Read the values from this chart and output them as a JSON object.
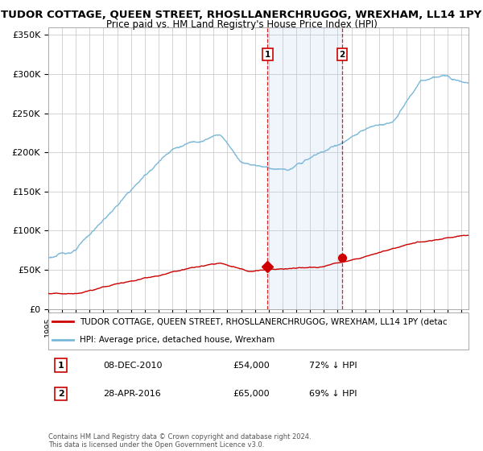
{
  "title": "TUDOR COTTAGE, QUEEN STREET, RHOSLLANERCHRUGOG, WREXHAM, LL14 1PY",
  "subtitle": "Price paid vs. HM Land Registry's House Price Index (HPI)",
  "ylabel_ticks": [
    "£0",
    "£50K",
    "£100K",
    "£150K",
    "£200K",
    "£250K",
    "£300K",
    "£350K"
  ],
  "ytick_values": [
    0,
    50000,
    100000,
    150000,
    200000,
    250000,
    300000,
    350000
  ],
  "ylim": [
    0,
    360000
  ],
  "xlim_start": 1995.0,
  "xlim_end": 2025.5,
  "marker1_x": 2010.92,
  "marker1_y": 54000,
  "marker2_x": 2016.33,
  "marker2_y": 65000,
  "marker1_label": "1",
  "marker2_label": "2",
  "marker1_date": "08-DEC-2010",
  "marker1_price": "£54,000",
  "marker1_hpi": "72% ↓ HPI",
  "marker2_date": "28-APR-2016",
  "marker2_price": "£65,000",
  "marker2_hpi": "69% ↓ HPI",
  "hpi_color": "#7ab8d9",
  "price_color": "#cc0000",
  "shade_color": "#ddeeff",
  "vline_color": "#cc0000",
  "background_color": "#ffffff",
  "grid_color": "#cccccc",
  "legend_line1": "TUDOR COTTAGE, QUEEN STREET, RHOSLLANERCHRUGOG, WREXHAM, LL14 1PY (detac",
  "legend_line2": "HPI: Average price, detached house, Wrexham",
  "footer": "Contains HM Land Registry data © Crown copyright and database right 2024.\nThis data is licensed under the Open Government Licence v3.0.",
  "title_fontsize": 9.5,
  "subtitle_fontsize": 8.5
}
